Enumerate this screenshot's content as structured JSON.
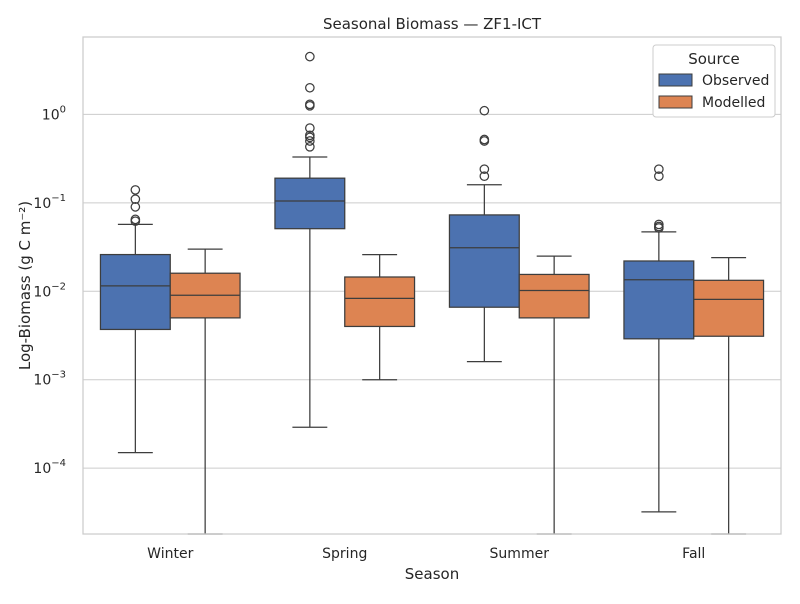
{
  "chart_data": {
    "type": "box",
    "title": "Seasonal Biomass — ZF1-ICT",
    "xlabel": "Season",
    "ylabel": "Log-Biomass (g C m⁻²)",
    "yscale": "log",
    "ylim": [
      1.8e-05,
      7.5
    ],
    "yticks": [
      {
        "value": 0.0001,
        "label": "10",
        "exp": "−4"
      },
      {
        "value": 0.001,
        "label": "10",
        "exp": "−3"
      },
      {
        "value": 0.01,
        "label": "10",
        "exp": "−2"
      },
      {
        "value": 0.1,
        "label": "10",
        "exp": "−1"
      },
      {
        "value": 1,
        "label": "10",
        "exp": "0"
      }
    ],
    "grid": true,
    "categories": [
      "Winter",
      "Spring",
      "Summer",
      "Fall"
    ],
    "legend": {
      "title": "Source",
      "position": "top-right"
    },
    "series": [
      {
        "name": "Observed",
        "color": "#4c72b0",
        "boxes": [
          {
            "whislo": 0.00015,
            "q1": 0.0037,
            "med": 0.0115,
            "q3": 0.026,
            "whishi": 0.057,
            "fliers": [
              0.062,
              0.065,
              0.09,
              0.11,
              0.14
            ]
          },
          {
            "whislo": 0.00029,
            "q1": 0.051,
            "med": 0.105,
            "q3": 0.19,
            "whishi": 0.33,
            "fliers": [
              0.43,
              0.5,
              0.55,
              0.58,
              0.7,
              1.25,
              1.3,
              2.0,
              4.5
            ]
          },
          {
            "whislo": 0.0016,
            "q1": 0.0066,
            "med": 0.031,
            "q3": 0.073,
            "whishi": 0.16,
            "fliers": [
              0.2,
              0.24,
              0.5,
              0.52,
              1.1
            ]
          },
          {
            "whislo": 3.2e-05,
            "q1": 0.0029,
            "med": 0.0135,
            "q3": 0.022,
            "whishi": 0.047,
            "fliers": [
              0.052,
              0.054,
              0.057,
              0.2,
              0.24
            ]
          }
        ]
      },
      {
        "name": "Modelled",
        "color": "#dd8452",
        "boxes": [
          {
            "whislo": 1.8e-05,
            "q1": 0.005,
            "med": 0.009,
            "q3": 0.016,
            "whishi": 0.03,
            "fliers": []
          },
          {
            "whislo": 0.001,
            "q1": 0.004,
            "med": 0.0083,
            "q3": 0.0145,
            "whishi": 0.026,
            "fliers": []
          },
          {
            "whislo": 1.8e-05,
            "q1": 0.005,
            "med": 0.0102,
            "q3": 0.0155,
            "whishi": 0.025,
            "fliers": []
          },
          {
            "whislo": 1.8e-05,
            "q1": 0.0031,
            "med": 0.0081,
            "q3": 0.0133,
            "whishi": 0.024,
            "fliers": []
          }
        ]
      }
    ]
  }
}
